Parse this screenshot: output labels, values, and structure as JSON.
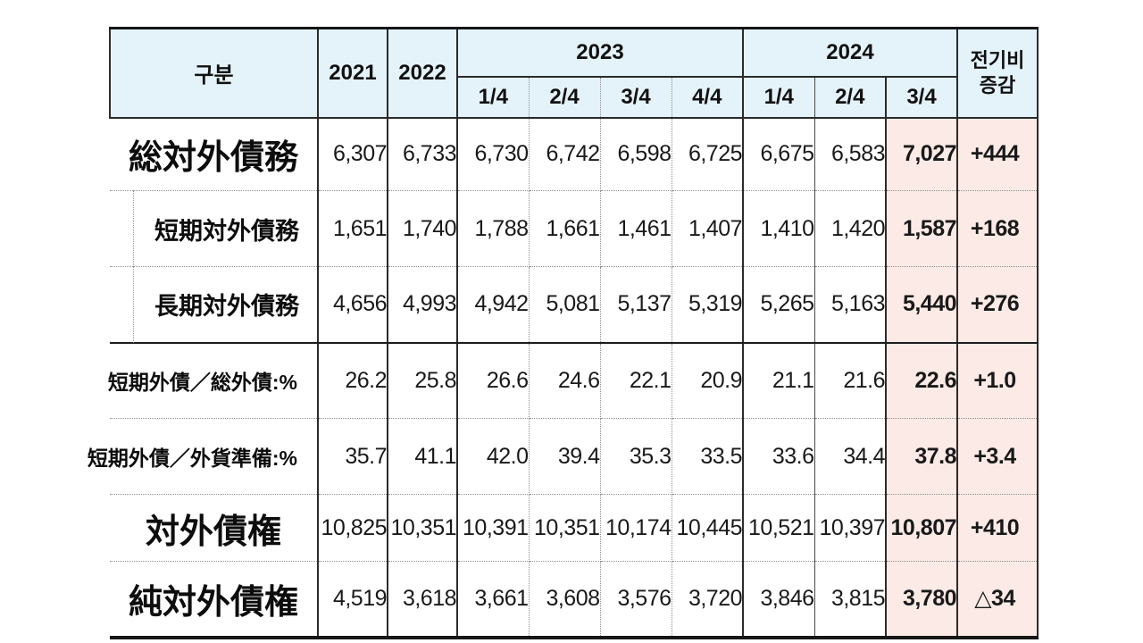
{
  "chart_data": {
    "type": "table",
    "title": "",
    "header": {
      "category": "구분",
      "standalone_years": [
        "2021",
        "2022"
      ],
      "grouped_years": [
        {
          "label": "2023",
          "quarters": [
            "1/4",
            "2/4",
            "3/4",
            "4/4"
          ]
        },
        {
          "label": "2024",
          "quarters": [
            "1/4",
            "2/4",
            "3/4"
          ]
        }
      ],
      "change_column": {
        "line1": "전기비",
        "line2": "증감"
      }
    },
    "columns_flat": [
      "구분",
      "2021",
      "2022",
      "2023 1/4",
      "2023 2/4",
      "2023 3/4",
      "2023 4/4",
      "2024 1/4",
      "2024 2/4",
      "2024 3/4",
      "전기비 증감"
    ],
    "rows": [
      {
        "label": "総対外債務",
        "style": "major",
        "values": [
          "6,307",
          "6,733",
          "6,730",
          "6,742",
          "6,598",
          "6,725",
          "6,675",
          "6,583",
          "7,027",
          "+444"
        ]
      },
      {
        "label": "短期対外債務",
        "style": "sub",
        "values": [
          "1,651",
          "1,740",
          "1,788",
          "1,661",
          "1,461",
          "1,407",
          "1,410",
          "1,420",
          "1,587",
          "+168"
        ]
      },
      {
        "label": "長期対外債務",
        "style": "sub",
        "values": [
          "4,656",
          "4,993",
          "4,942",
          "5,081",
          "5,137",
          "5,319",
          "5,265",
          "5,163",
          "5,440",
          "+276"
        ]
      },
      {
        "label": "短期外債／総外債:%",
        "style": "ratio",
        "values": [
          "26.2",
          "25.8",
          "26.6",
          "24.6",
          "22.1",
          "20.9",
          "21.1",
          "21.6",
          "22.6",
          "+1.0"
        ]
      },
      {
        "label": "短期外債／外貨準備:%",
        "style": "ratio",
        "values": [
          "35.7",
          "41.1",
          "42.0",
          "39.4",
          "35.3",
          "33.5",
          "33.6",
          "34.4",
          "37.8",
          "+3.4"
        ]
      },
      {
        "label": "対外債権",
        "style": "major",
        "values": [
          "10,825",
          "10,351",
          "10,391",
          "10,351",
          "10,174",
          "10,445",
          "10,521",
          "10,397",
          "10,807",
          "+410"
        ]
      },
      {
        "label": "純対外債権",
        "style": "major",
        "values": [
          "4,519",
          "3,618",
          "3,661",
          "3,608",
          "3,576",
          "3,720",
          "3,846",
          "3,815",
          "3,780",
          "△34"
        ]
      }
    ],
    "layout_hints": {
      "highlighted_columns": [
        "2024 3/4",
        "전기비 증감"
      ],
      "highlight_bg": "#fbeae6",
      "header_bg": "#e4f2f9",
      "grid": "solid major lines, dotted quarter/row separators"
    }
  }
}
